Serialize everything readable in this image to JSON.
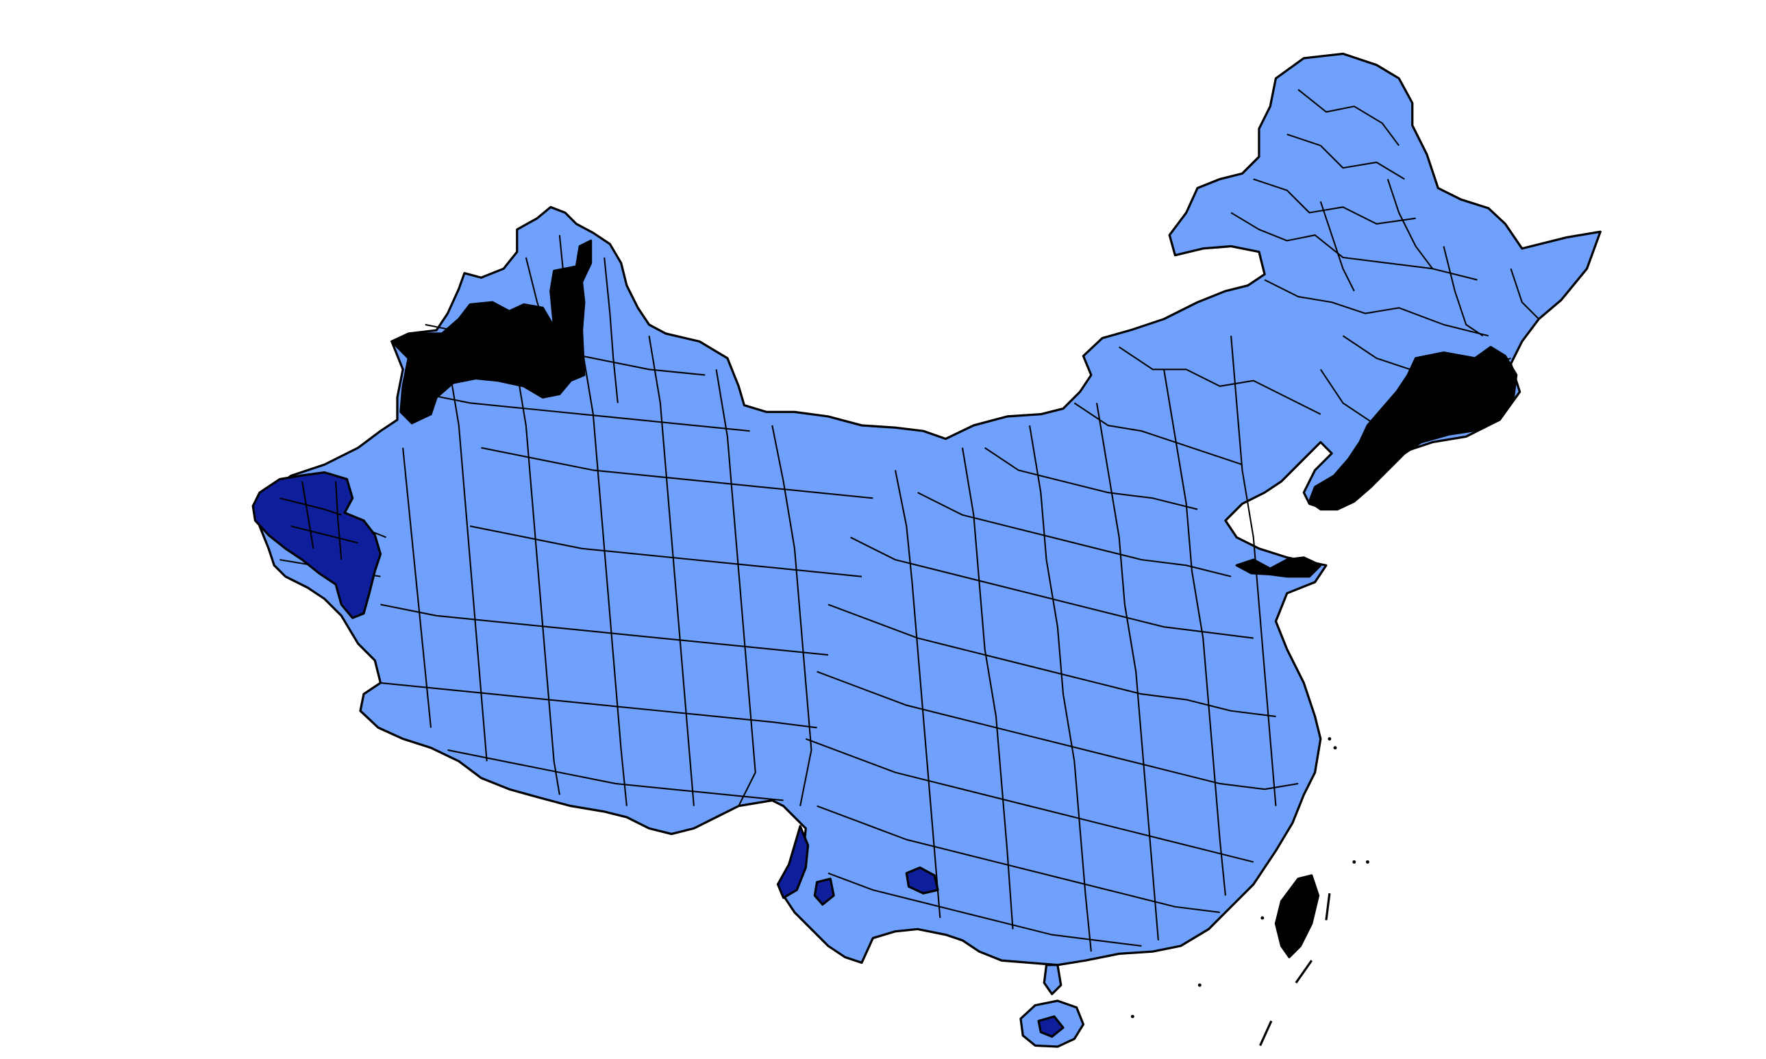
{
  "map": {
    "type": "choropleth",
    "legend": null,
    "colors": {
      "background": "#ffffff",
      "default_fill": "#6fa1fc",
      "category_dark_blue": "#0f1e9a",
      "category_black": "#000000",
      "borders": "#000000"
    },
    "highlighted_regions": [
      {
        "name": "north-xinjiang-cluster",
        "category": "black"
      },
      {
        "name": "west-xinjiang-cluster",
        "category": "dark_blue"
      },
      {
        "name": "northeast-coast-cluster",
        "category": "black"
      },
      {
        "name": "shandong-peninsula-spot",
        "category": "black"
      },
      {
        "name": "taiwan",
        "category": "black"
      },
      {
        "name": "south-yunnan-clusters",
        "category": "dark_blue"
      },
      {
        "name": "hainan-spot",
        "category": "dark_blue"
      }
    ]
  }
}
